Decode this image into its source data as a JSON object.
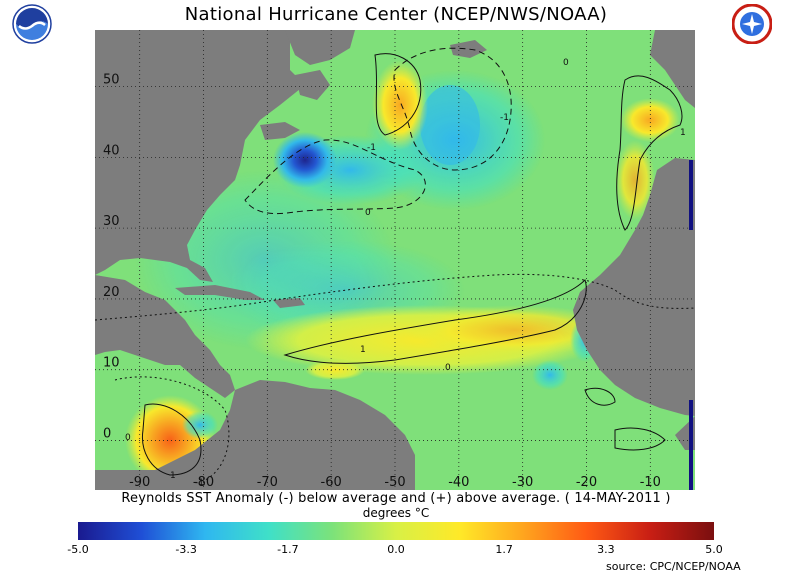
{
  "header": {
    "title": "National Hurricane Center (NCEP/NWS/NOAA)"
  },
  "logos": {
    "left": "noaa-logo",
    "right": "national-weather-service-logo"
  },
  "map": {
    "lon_ticks": [
      "-90",
      "-80",
      "-70",
      "-60",
      "-50",
      "-40",
      "-30",
      "-20",
      "-10"
    ],
    "lat_ticks": [
      "50",
      "40",
      "30",
      "20",
      "10",
      "0"
    ],
    "lon_range": [
      -97,
      -3
    ],
    "lat_range": [
      -7,
      58
    ],
    "grid": true,
    "contour_labels": [
      "-1",
      "0",
      "1",
      "-1",
      "0",
      "1",
      "0",
      "1",
      "-1",
      "0"
    ],
    "colors": {
      "land": "#7d7d7d",
      "ocean_base": "#7fe07a",
      "grid_line": "#222222"
    }
  },
  "caption": {
    "text": "Reynolds SST Anomaly (-) below average and (+) above average. ( 14-MAY-2011 )",
    "units": "degrees °C"
  },
  "colorbar": {
    "range": [
      -5.0,
      5.0
    ],
    "tick_labels": [
      "-5.0",
      "-3.3",
      "-1.7",
      "0.0",
      "1.7",
      "3.3",
      "5.0"
    ],
    "colors": [
      "#1a1a8f",
      "#1f4fd6",
      "#2fb7f0",
      "#3fe0c8",
      "#7ce27a",
      "#d8f046",
      "#ffe928",
      "#ffa51e",
      "#ff5a14",
      "#c81e14",
      "#7a0f0f"
    ]
  },
  "footer": {
    "source": "source:  CPC/NCEP/NOAA"
  }
}
